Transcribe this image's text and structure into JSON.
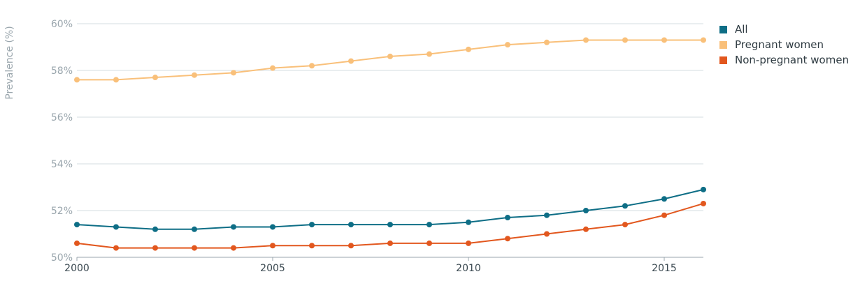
{
  "chart_data": {
    "type": "line",
    "ylabel": "Prevalence (%)",
    "xlim": [
      2000,
      2016
    ],
    "ylim": [
      50,
      60
    ],
    "x_ticks": [
      2000,
      2005,
      2010,
      2015
    ],
    "x_tick_labels": [
      "2000",
      "2005",
      "2010",
      "2015"
    ],
    "y_ticks": [
      50,
      52,
      54,
      56,
      58,
      60
    ],
    "y_tick_labels": [
      "50%",
      "52%",
      "54%",
      "56%",
      "58%",
      "60%"
    ],
    "grid": "horizontal",
    "legend_position": "top-right",
    "x": [
      2000,
      2001,
      2002,
      2003,
      2004,
      2005,
      2006,
      2007,
      2008,
      2009,
      2010,
      2011,
      2012,
      2013,
      2014,
      2015,
      2016
    ],
    "series": [
      {
        "name": "All",
        "color": "#0e6e86",
        "values": [
          51.4,
          51.3,
          51.2,
          51.2,
          51.3,
          51.3,
          51.4,
          51.4,
          51.4,
          51.4,
          51.5,
          51.7,
          51.8,
          52.0,
          52.2,
          52.5,
          52.9
        ]
      },
      {
        "name": "Pregnant women",
        "color": "#f9c07a",
        "values": [
          57.6,
          57.6,
          57.7,
          57.8,
          57.9,
          58.1,
          58.2,
          58.4,
          58.6,
          58.7,
          58.9,
          59.1,
          59.2,
          59.3,
          59.3,
          59.3,
          59.3
        ]
      },
      {
        "name": "Non-pregnant women",
        "color": "#e2571e",
        "values": [
          50.6,
          50.4,
          50.4,
          50.4,
          50.4,
          50.5,
          50.5,
          50.5,
          50.6,
          50.6,
          50.6,
          50.8,
          51.0,
          51.2,
          51.4,
          51.8,
          52.3
        ]
      }
    ]
  }
}
